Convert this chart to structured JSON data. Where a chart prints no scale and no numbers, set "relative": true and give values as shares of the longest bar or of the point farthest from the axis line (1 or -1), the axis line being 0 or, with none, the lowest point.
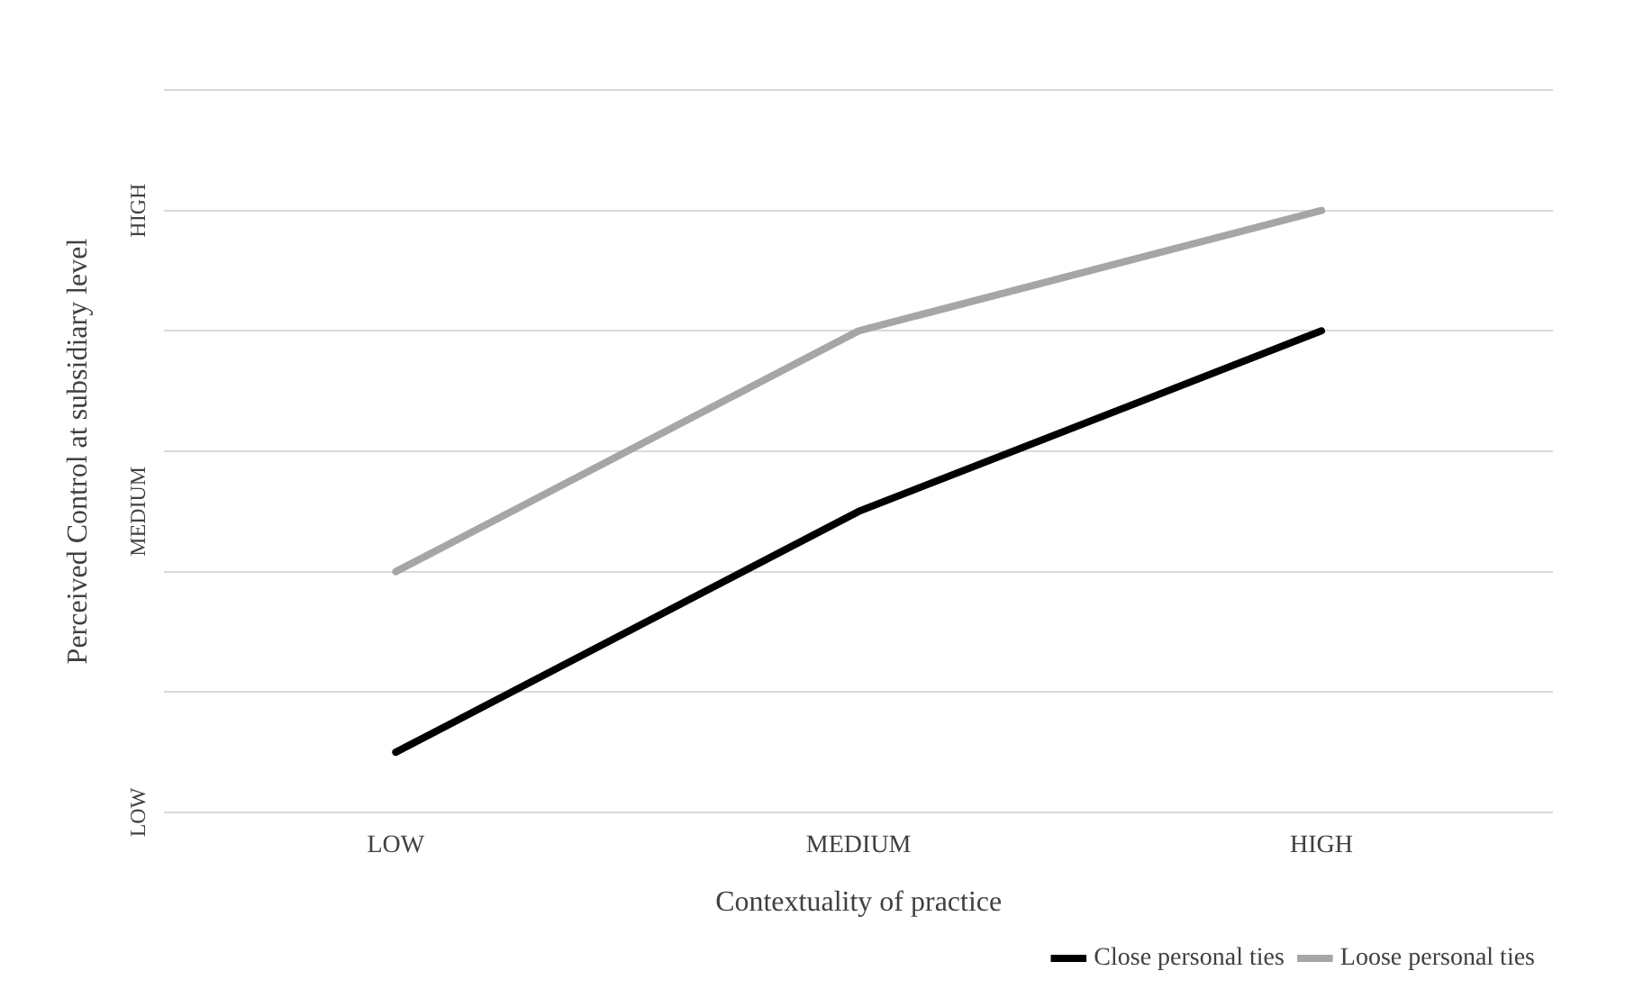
{
  "chart_data": {
    "type": "line",
    "xlabel": "Contextuality of practice",
    "ylabel": "Perceived Control at subsidiary level",
    "categories": [
      "LOW",
      "MEDIUM",
      "HIGH"
    ],
    "relative": true,
    "series": [
      {
        "name": "Close personal ties",
        "color": "#000000",
        "values": [
          0.1,
          0.5,
          0.8
        ]
      },
      {
        "name": "Loose personal ties",
        "color": "#a6a6a6",
        "values": [
          0.4,
          0.8,
          1
        ]
      }
    ],
    "annotations": [
      "LOW",
      "MEDIUM",
      "HIGH"
    ],
    "grid": "y",
    "legend": "bottom right",
    "marker": "none",
    "line_style": "solid"
  }
}
